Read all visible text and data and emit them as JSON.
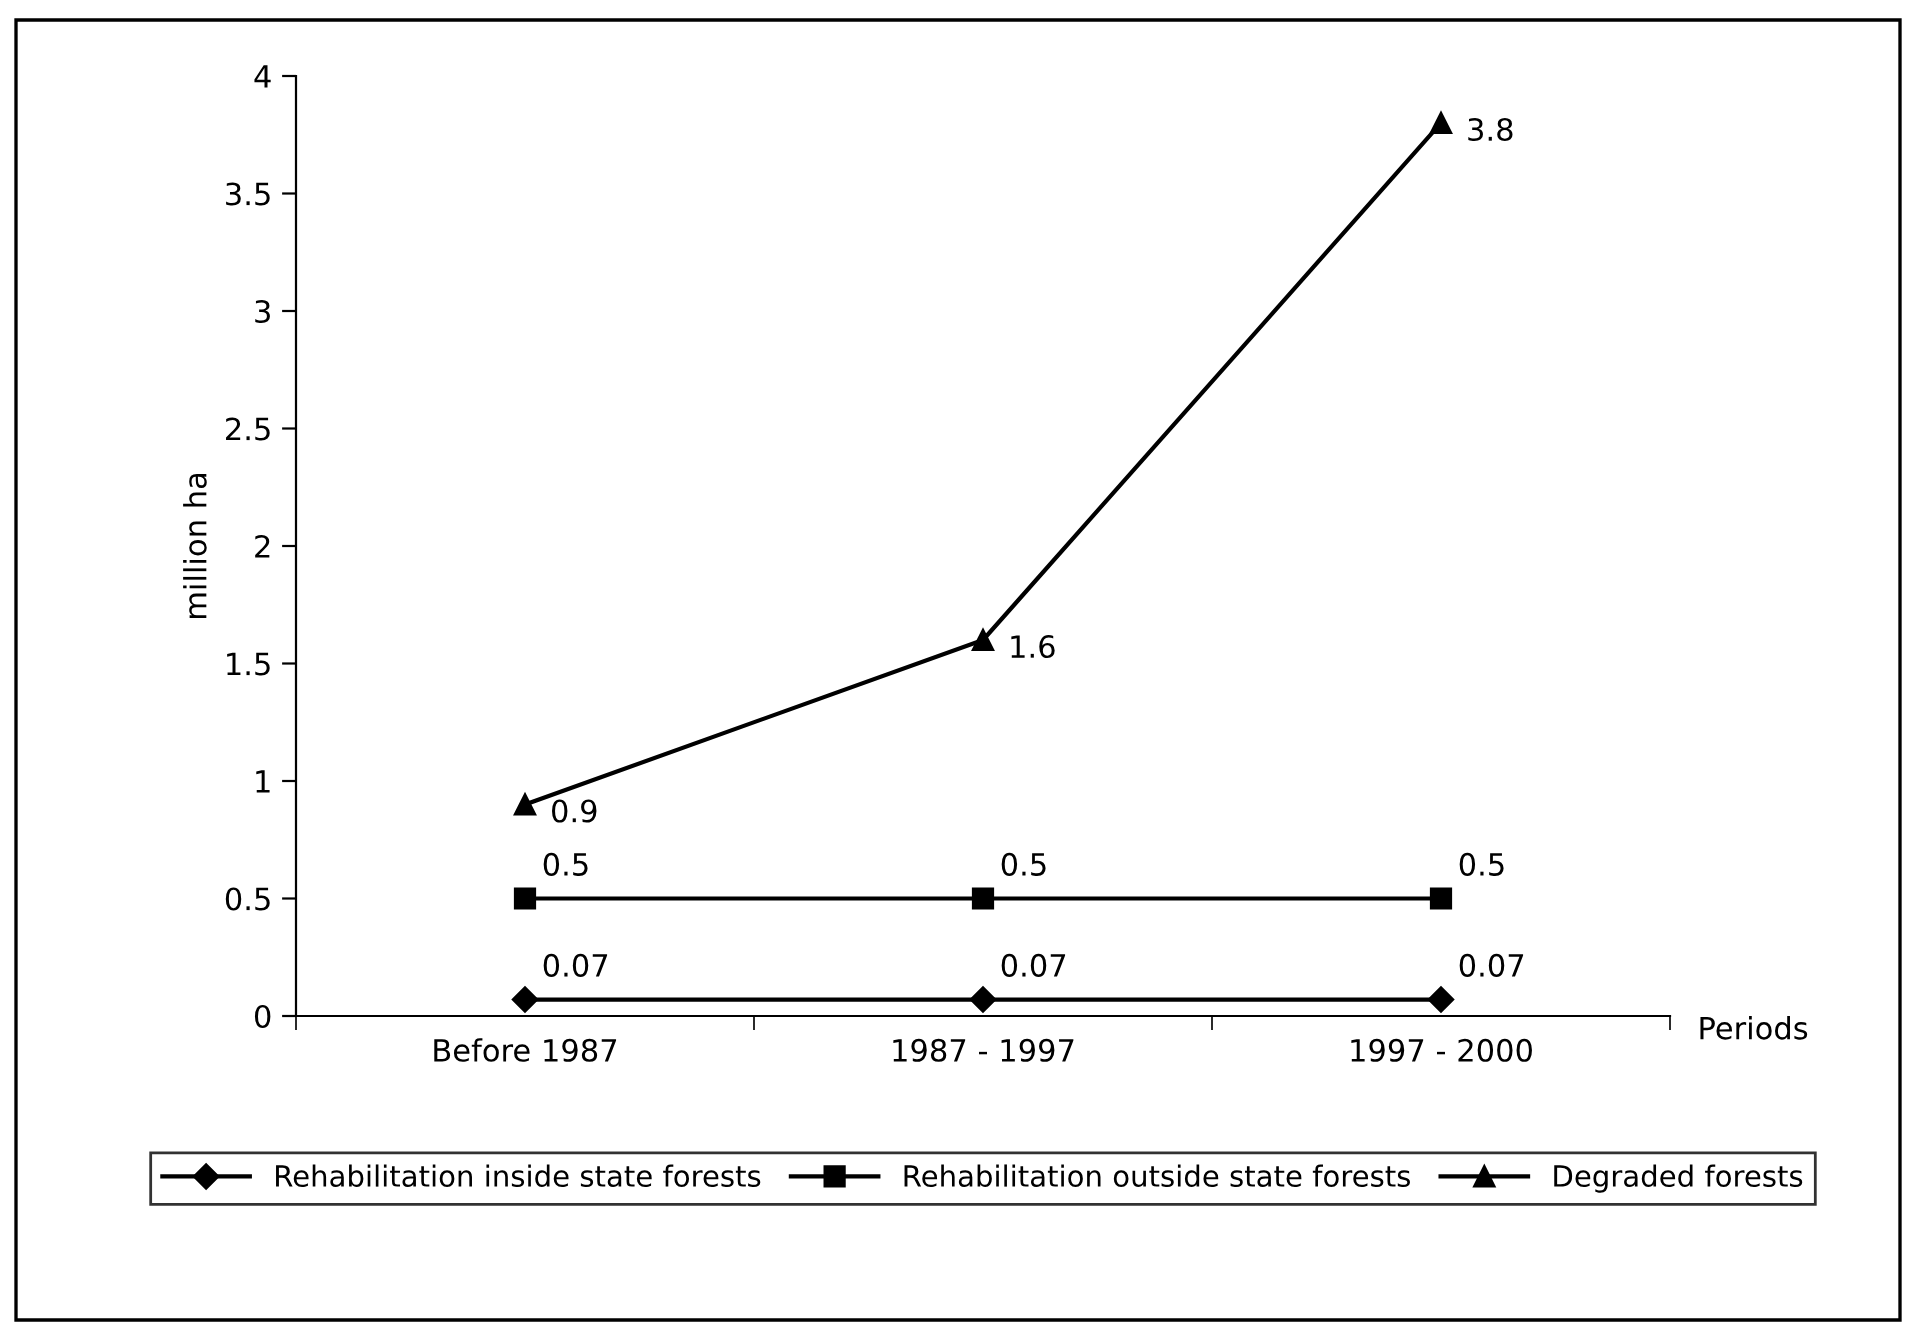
{
  "chart_data": {
    "type": "line",
    "xlabel": "Periods",
    "ylabel": "million ha",
    "categories": [
      "Before 1987",
      "1987 - 1997",
      "1997 - 2000"
    ],
    "series": [
      {
        "name": "Rehabilitation inside state forests",
        "color": "#000000",
        "marker": "diamond",
        "values": [
          0.07,
          0.07,
          0.07
        ]
      },
      {
        "name": "Rehabilitation outside state forests",
        "color": "#000000",
        "marker": "square",
        "values": [
          0.5,
          0.5,
          0.5
        ]
      },
      {
        "name": "Degraded forests",
        "color": "#000000",
        "marker": "triangle",
        "values": [
          0.9,
          1.6,
          3.8
        ]
      }
    ],
    "ylim": [
      0,
      4
    ],
    "yticks": [
      0,
      0.5,
      1,
      1.5,
      2,
      2.5,
      3,
      3.5,
      4
    ],
    "data_labels": true,
    "grid": false,
    "legend": "bottom",
    "line_style": "solid"
  }
}
